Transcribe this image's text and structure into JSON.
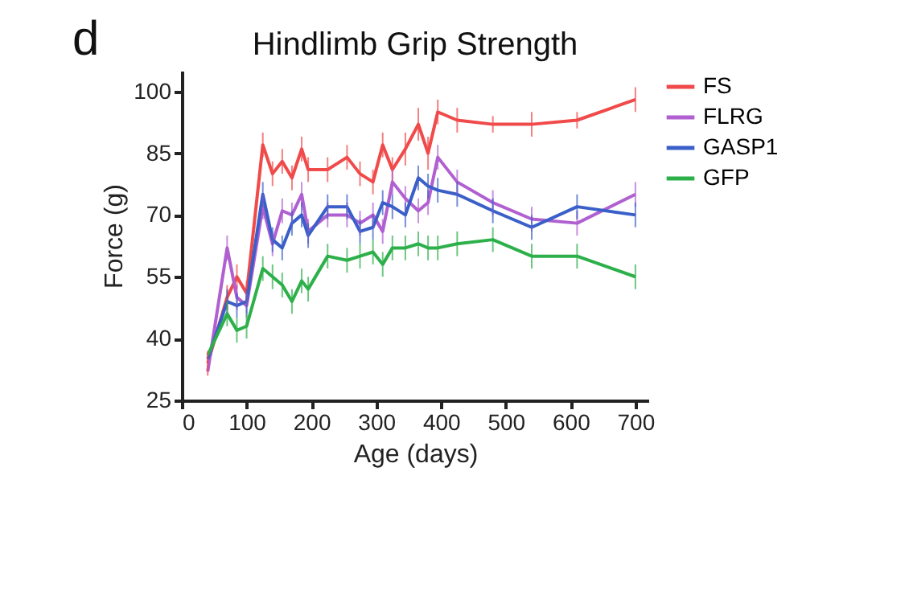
{
  "chart_data": {
    "type": "line",
    "title": "Hindlimb Grip Strength",
    "xlabel": "Age (days)",
    "ylabel": "Force (g)",
    "annotations": [
      "d"
    ],
    "x": [
      40,
      70,
      85,
      100,
      125,
      140,
      155,
      170,
      185,
      195,
      225,
      255,
      275,
      295,
      310,
      325,
      345,
      365,
      380,
      395,
      425,
      480,
      540,
      610,
      700
    ],
    "series": [
      {
        "name": "FS",
        "color": "#f04a4a",
        "values": [
          34,
          50,
          55,
          51,
          87,
          80,
          83,
          79,
          86,
          81,
          81,
          84,
          80,
          78,
          87,
          81,
          86,
          92,
          85,
          95,
          93,
          92,
          92,
          93,
          98
        ],
        "errors": [
          3,
          3,
          3,
          3,
          3,
          3,
          3,
          3,
          3,
          3,
          3,
          3,
          3,
          3,
          3,
          3,
          4,
          4,
          4,
          3,
          3,
          2,
          3,
          2,
          3
        ]
      },
      {
        "name": "FLRG",
        "color": "#b060d0",
        "values": [
          32,
          62,
          50,
          48,
          72,
          63,
          71,
          70,
          75,
          66,
          70,
          70,
          68,
          70,
          66,
          78,
          74,
          71,
          73,
          84,
          78,
          73,
          69,
          68,
          75
        ],
        "errors": [
          null,
          3,
          3,
          3,
          3,
          3,
          3,
          3,
          3,
          3,
          3,
          3,
          3,
          3,
          3,
          3,
          3,
          3,
          3,
          3,
          3,
          3,
          3,
          3,
          3
        ]
      },
      {
        "name": "GASP1",
        "color": "#3a5fc8",
        "values": [
          35,
          49,
          48,
          49,
          75,
          64,
          62,
          68,
          70,
          65,
          72,
          72,
          66,
          67,
          73,
          72,
          70,
          79,
          77,
          76,
          75,
          71,
          67,
          72,
          70
        ],
        "errors": [
          null,
          3,
          3,
          3,
          3,
          3,
          3,
          3,
          3,
          3,
          3,
          3,
          3,
          3,
          3,
          3,
          3,
          3,
          3,
          3,
          3,
          3,
          3,
          3,
          3
        ]
      },
      {
        "name": "GFP",
        "color": "#2db04a",
        "values": [
          36,
          46,
          42,
          43,
          57,
          55,
          53,
          49,
          54,
          52,
          60,
          59,
          60,
          61,
          58,
          62,
          62,
          63,
          62,
          62,
          63,
          64,
          60,
          60,
          55
        ],
        "errors": [
          null,
          3,
          3,
          3,
          3,
          3,
          3,
          3,
          3,
          3,
          3,
          3,
          3,
          3,
          3,
          3,
          3,
          3,
          3,
          3,
          3,
          3,
          3,
          3,
          3
        ]
      }
    ],
    "xlim": [
      0,
      720
    ],
    "xticks": [
      0,
      100,
      200,
      300,
      400,
      500,
      600,
      700
    ],
    "ylim": [
      25,
      105
    ],
    "yticks": [
      25,
      40,
      55,
      70,
      85,
      100
    ],
    "grid": false,
    "legend": "right",
    "marker": "none",
    "line_style": "solid"
  }
}
